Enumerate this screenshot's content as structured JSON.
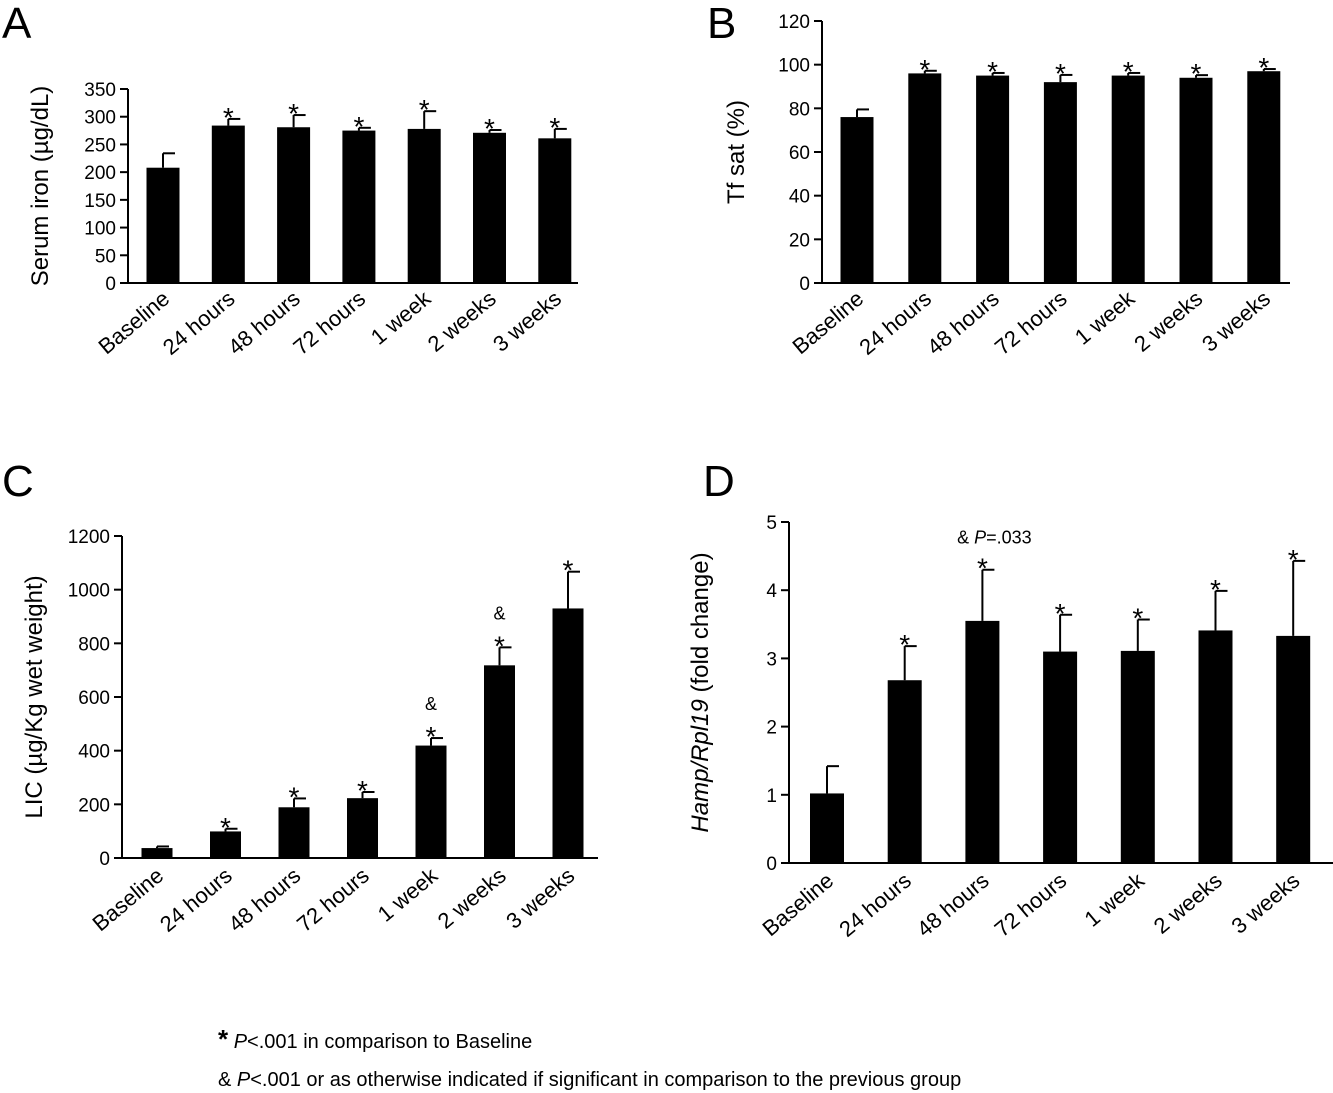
{
  "chart_data": [
    {
      "panel": "A",
      "type": "bar",
      "ylabel": "Serum iron (µg/dL)",
      "ylim": [
        0,
        350
      ],
      "yticks": [
        0,
        50,
        100,
        150,
        200,
        250,
        300,
        350
      ],
      "categories": [
        "Baseline",
        "24 hours",
        "48 hours",
        "72 hours",
        "1 week",
        "2 weeks",
        "3 weeks"
      ],
      "values": [
        208,
        284,
        281,
        275,
        278,
        271,
        261
      ],
      "errors": [
        26,
        12,
        22,
        5,
        32,
        5,
        17
      ],
      "marks": [
        [],
        [
          "*"
        ],
        [
          "*"
        ],
        [
          "*"
        ],
        [
          "*"
        ],
        [
          "*"
        ],
        [
          "*"
        ]
      ]
    },
    {
      "panel": "B",
      "type": "bar",
      "ylabel": "Tf sat (%)",
      "ylim": [
        0,
        120
      ],
      "yticks": [
        0,
        20,
        40,
        60,
        80,
        100,
        120
      ],
      "categories": [
        "Baseline",
        "24 hours",
        "48 hours",
        "72 hours",
        "1 week",
        "2 weeks",
        "3 weeks"
      ],
      "values": [
        76,
        96,
        95,
        92,
        95,
        94,
        97
      ],
      "errors": [
        3.5,
        1.2,
        1.2,
        3.3,
        1.2,
        1.2,
        1
      ],
      "marks": [
        [],
        [
          "*"
        ],
        [
          "*"
        ],
        [
          "*"
        ],
        [
          "*"
        ],
        [
          "*"
        ],
        [
          "*"
        ]
      ]
    },
    {
      "panel": "C",
      "type": "bar",
      "ylabel": "LIC (µg/Kg wet weight)",
      "ylim": [
        0,
        1200
      ],
      "yticks": [
        0,
        200,
        400,
        600,
        800,
        1000,
        1200
      ],
      "categories": [
        "Baseline",
        "24 hours",
        "48 hours",
        "72 hours",
        "1  week",
        "2 weeks",
        "3 weeks"
      ],
      "values": [
        37,
        99,
        189,
        223,
        419,
        718,
        930
      ],
      "errors": [
        6,
        10,
        33,
        23,
        28,
        67,
        137
      ],
      "marks": [
        [],
        [
          "*"
        ],
        [
          "*"
        ],
        [
          "*"
        ],
        [
          "*",
          "&"
        ],
        [
          "*",
          "&"
        ],
        [
          "*"
        ]
      ]
    },
    {
      "panel": "D",
      "type": "bar",
      "ylabel_italic": "Hamp/Rpl19",
      "ylabel_rest": " (fold change)",
      "ylim": [
        0,
        5
      ],
      "yticks": [
        0,
        1,
        2,
        3,
        4,
        5
      ],
      "categories": [
        "Baseline",
        "24 hours",
        "48 hours",
        "72 hours",
        "1 week",
        "2 weeks",
        "3 weeks"
      ],
      "values": [
        1.02,
        2.68,
        3.55,
        3.1,
        3.11,
        3.41,
        3.33
      ],
      "errors": [
        0.4,
        0.5,
        0.75,
        0.54,
        0.46,
        0.58,
        1.1
      ],
      "marks": [
        [],
        [
          "*"
        ],
        [
          "*"
        ],
        [
          "*"
        ],
        [
          "*"
        ],
        [
          "*"
        ],
        [
          "*"
        ]
      ],
      "special_annotation": {
        "prefix": "& ",
        "italic": "P",
        "rest": "=.033"
      }
    }
  ],
  "footnotes": {
    "star_symbol": "*",
    "amp_symbol": "&",
    "p_italic": "P",
    "star_text": "<.001 in comparison to Baseline",
    "amp_text": "<.001 or as otherwise indicated if significant in comparison to the previous group"
  }
}
